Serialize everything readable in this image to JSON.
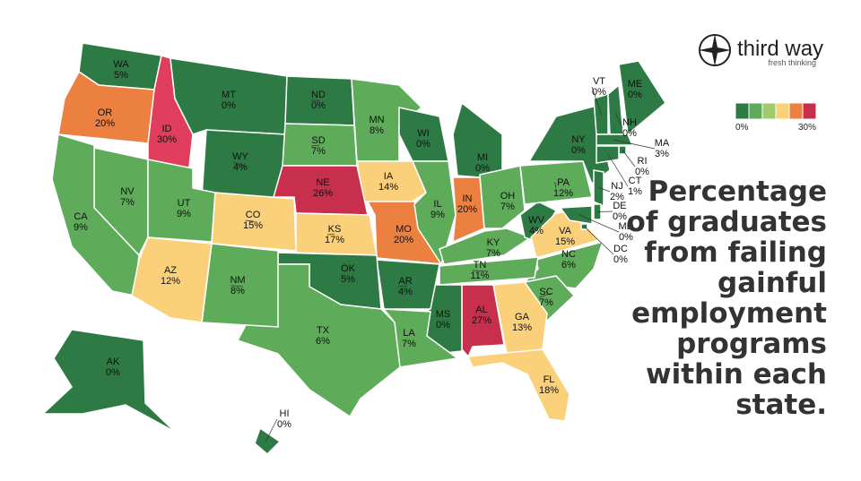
{
  "chart_data": {
    "type": "choropleth",
    "title_lines": [
      "Percentage",
      "of graduates",
      "from failing",
      "gainful",
      "employment",
      "programs",
      "within each",
      "state."
    ],
    "brand": {
      "name": "third way",
      "tagline": "fresh thinking"
    },
    "categories": [
      "WA",
      "OR",
      "ID",
      "MT",
      "ND",
      "MN",
      "WI",
      "MI",
      "WY",
      "SD",
      "IA",
      "NE",
      "NV",
      "CA",
      "UT",
      "CO",
      "KS",
      "MO",
      "IL",
      "IN",
      "OH",
      "KY",
      "WV",
      "VA",
      "PA",
      "NY",
      "VT",
      "NH",
      "ME",
      "MA",
      "RI",
      "CT",
      "NJ",
      "DE",
      "MD",
      "DC",
      "NC",
      "TN",
      "SC",
      "GA",
      "FL",
      "AL",
      "MS",
      "AR",
      "LA",
      "OK",
      "TX",
      "NM",
      "AZ",
      "AK",
      "HI"
    ],
    "values": [
      5,
      20,
      30,
      0,
      0,
      8,
      0,
      0,
      4,
      7,
      14,
      26,
      7,
      9,
      9,
      15,
      17,
      20,
      9,
      20,
      7,
      7,
      4,
      15,
      12,
      0,
      0,
      0,
      0,
      3,
      0,
      1,
      2,
      0,
      0,
      0,
      6,
      11,
      7,
      13,
      18,
      27,
      0,
      4,
      7,
      5,
      6,
      8,
      12,
      0,
      0
    ],
    "value_labels": [
      "5%",
      "20%",
      "30%",
      "0%",
      "0%",
      "8%",
      "0%",
      "0%",
      "4%",
      "7%",
      "14%",
      "26%",
      "7%",
      "9%",
      "9%",
      "15%",
      "17%",
      "20%",
      "9%",
      "20%",
      "7%",
      "7%",
      "4%",
      "15%",
      "12%",
      "0%",
      "0%",
      "0%",
      "0%",
      "3%",
      "0%",
      "1%",
      "2%",
      "0%",
      "0%",
      "0%",
      "6%",
      "11%",
      "7%",
      "13%",
      "18%",
      "27%",
      "0%",
      "4%",
      "7%",
      "5%",
      "6%",
      "8%",
      "12%",
      "0%",
      "0%"
    ],
    "colors": [
      "#2e7a44",
      "#ec8040",
      "#e03e5c",
      "#2e7a44",
      "#2e7a44",
      "#5eab5a",
      "#2e7a44",
      "#2e7a44",
      "#2e7a44",
      "#5eab5a",
      "#fbd07a",
      "#c72f4c",
      "#5eab5a",
      "#5eab5a",
      "#5eab5a",
      "#fbd07a",
      "#fbd07a",
      "#ec8040",
      "#5eab5a",
      "#ec8040",
      "#5eab5a",
      "#5eab5a",
      "#2e7a44",
      "#fbd07a",
      "#5eab5a",
      "#2e7a44",
      "#2e7a44",
      "#2e7a44",
      "#2e7a44",
      "#2e7a44",
      "#2e7a44",
      "#2e7a44",
      "#2e7a44",
      "#2e7a44",
      "#2e7a44",
      "#2e7a44",
      "#5eab5a",
      "#5eab5a",
      "#5eab5a",
      "#fbd07a",
      "#fbd07a",
      "#c72f4c",
      "#2e7a44",
      "#2e7a44",
      "#5eab5a",
      "#2e7a44",
      "#5eab5a",
      "#5eab5a",
      "#fbd07a",
      "#2e7a44",
      "#2e7a44"
    ],
    "legend": {
      "colors": [
        "#2e7a44",
        "#5eab5a",
        "#9fcb6e",
        "#fbd07a",
        "#ec8040",
        "#c72f4c"
      ],
      "ticks": [
        {
          "value": 0,
          "label": "0%"
        },
        {
          "value": 30,
          "label": "30%"
        }
      ]
    }
  }
}
